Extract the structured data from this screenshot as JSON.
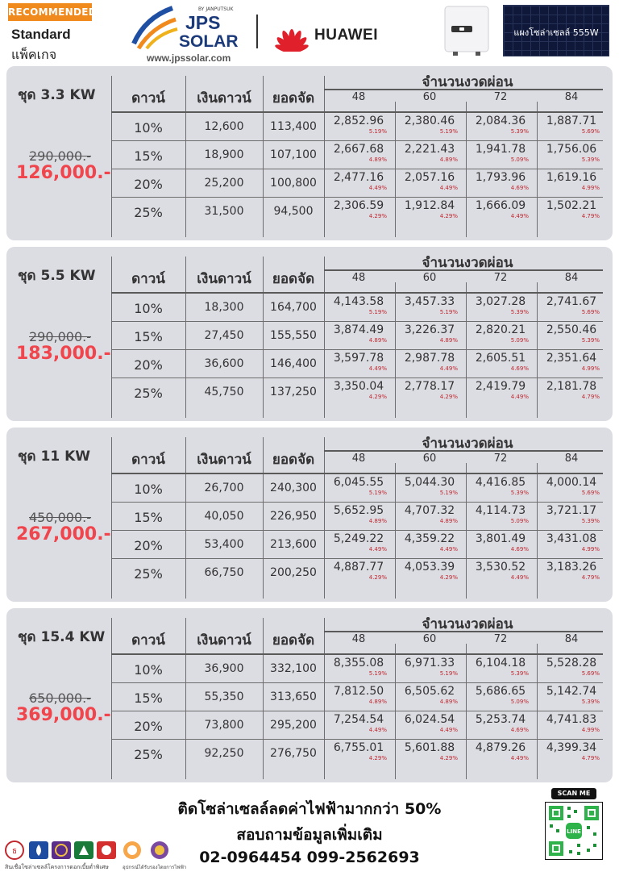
{
  "header": {
    "badge": "RECOMMENDED",
    "standard_label": "Standard",
    "package_label": "แพ็คเกจ",
    "brand_top": "BY JANPUTSUK",
    "brand_line1": "JPS",
    "brand_line2": "SOLAR",
    "website": "www.jpssolar.com",
    "partner_brand": "HUAWEI",
    "panel_label": "แผงโซล่าเซลล์ 555W"
  },
  "columns": {
    "down_pct": "ดาวน์",
    "down_amount": "เงินดาวน์",
    "financed": "ยอดจัด",
    "installments": "จำนวนงวดผ่อน",
    "terms": [
      "48",
      "60",
      "72",
      "84"
    ]
  },
  "packages": [
    {
      "title": "ชุด 3.3 KW",
      "old_price": "290,000.-",
      "new_price": "126,000.-",
      "rows": [
        {
          "pct": "10%",
          "down": "12,600",
          "financed": "113,400",
          "amounts": [
            "2,852.96",
            "2,380.46",
            "2,084.36",
            "1,887.71"
          ],
          "rates": [
            "5.19%",
            "5.19%",
            "5.39%",
            "5.69%"
          ]
        },
        {
          "pct": "15%",
          "down": "18,900",
          "financed": "107,100",
          "amounts": [
            "2,667.68",
            "2,221.43",
            "1,941.78",
            "1,756.06"
          ],
          "rates": [
            "4.89%",
            "4.89%",
            "5.09%",
            "5.39%"
          ]
        },
        {
          "pct": "20%",
          "down": "25,200",
          "financed": "100,800",
          "amounts": [
            "2,477.16",
            "2,057.16",
            "1,793.96",
            "1,619.16"
          ],
          "rates": [
            "4.49%",
            "4.49%",
            "4.69%",
            "4.99%"
          ]
        },
        {
          "pct": "25%",
          "down": "31,500",
          "financed": "94,500",
          "amounts": [
            "2,306.59",
            "1,912.84",
            "1,666.09",
            "1,502.21"
          ],
          "rates": [
            "4.29%",
            "4.29%",
            "4.49%",
            "4.79%"
          ]
        }
      ]
    },
    {
      "title": "ชุด 5.5 KW",
      "old_price": "290,000.-",
      "new_price": "183,000.-",
      "rows": [
        {
          "pct": "10%",
          "down": "18,300",
          "financed": "164,700",
          "amounts": [
            "4,143.58",
            "3,457.33",
            "3,027.28",
            "2,741.67"
          ],
          "rates": [
            "5.19%",
            "5.19%",
            "5.39%",
            "5.69%"
          ]
        },
        {
          "pct": "15%",
          "down": "27,450",
          "financed": "155,550",
          "amounts": [
            "3,874.49",
            "3,226.37",
            "2,820.21",
            "2,550.46"
          ],
          "rates": [
            "4.89%",
            "4.89%",
            "5.09%",
            "5.39%"
          ]
        },
        {
          "pct": "20%",
          "down": "36,600",
          "financed": "146,400",
          "amounts": [
            "3,597.78",
            "2,987.78",
            "2,605.51",
            "2,351.64"
          ],
          "rates": [
            "4.49%",
            "4.49%",
            "4.69%",
            "4.99%"
          ]
        },
        {
          "pct": "25%",
          "down": "45,750",
          "financed": "137,250",
          "amounts": [
            "3,350.04",
            "2,778.17",
            "2,419.79",
            "2,181.78"
          ],
          "rates": [
            "4.29%",
            "4.29%",
            "4.49%",
            "4.79%"
          ]
        }
      ]
    },
    {
      "title": "ชุด 11 KW",
      "old_price": "450,000.-",
      "new_price": "267,000.-",
      "rows": [
        {
          "pct": "10%",
          "down": "26,700",
          "financed": "240,300",
          "amounts": [
            "6,045.55",
            "5,044.30",
            "4,416.85",
            "4,000.14"
          ],
          "rates": [
            "5.19%",
            "5.19%",
            "5.39%",
            "5.69%"
          ]
        },
        {
          "pct": "15%",
          "down": "40,050",
          "financed": "226,950",
          "amounts": [
            "5,652.95",
            "4,707.32",
            "4,114.73",
            "3,721.17"
          ],
          "rates": [
            "4.89%",
            "4.89%",
            "5.09%",
            "5.39%"
          ]
        },
        {
          "pct": "20%",
          "down": "53,400",
          "financed": "213,600",
          "amounts": [
            "5,249.22",
            "4,359.22",
            "3,801.49",
            "3,431.08"
          ],
          "rates": [
            "4.49%",
            "4.49%",
            "4.69%",
            "4.99%"
          ]
        },
        {
          "pct": "25%",
          "down": "66,750",
          "financed": "200,250",
          "amounts": [
            "4,887.77",
            "4,053.39",
            "3,530.52",
            "3,183.26"
          ],
          "rates": [
            "4.29%",
            "4.29%",
            "4.49%",
            "4.79%"
          ]
        }
      ]
    },
    {
      "title": "ชุด 15.4 KW",
      "old_price": "650,000.-",
      "new_price": "369,000.-",
      "rows": [
        {
          "pct": "10%",
          "down": "36,900",
          "financed": "332,100",
          "amounts": [
            "8,355.08",
            "6,971.33",
            "6,104.18",
            "5,528.28"
          ],
          "rates": [
            "5.19%",
            "5.19%",
            "5.39%",
            "5.69%"
          ]
        },
        {
          "pct": "15%",
          "down": "55,350",
          "financed": "313,650",
          "amounts": [
            "7,812.50",
            "6,505.62",
            "5,686.65",
            "5,142.74"
          ],
          "rates": [
            "4.89%",
            "4.89%",
            "5.09%",
            "5.39%"
          ]
        },
        {
          "pct": "20%",
          "down": "73,800",
          "financed": "295,200",
          "amounts": [
            "7,254.54",
            "6,024.54",
            "5,253.74",
            "4,741.83"
          ],
          "rates": [
            "4.49%",
            "4.49%",
            "4.69%",
            "4.99%"
          ]
        },
        {
          "pct": "25%",
          "down": "92,250",
          "financed": "276,750",
          "amounts": [
            "6,755.01",
            "5,601.88",
            "4,879.26",
            "4,399.34"
          ],
          "rates": [
            "4.29%",
            "4.29%",
            "4.49%",
            "4.79%"
          ]
        }
      ]
    }
  ],
  "footer": {
    "headline": "ติดโซล่าเซลล์ลดค่าไฟฟ้ามากกว่า 50%",
    "contact_label": "สอบถามข้อมูลเพิ่มเติม",
    "phones": "02-0964454 099-2562693",
    "scan_label": "SCAN ME",
    "qr_label": "LINE",
    "partners_caption": "สินเชื่อโซล่าเซลล์โครงการดอกเบี้ยต่ำพิเศษ",
    "partners_caption2": "อุปกรณ์ได้รับรองโดยการไฟฟ้า"
  }
}
